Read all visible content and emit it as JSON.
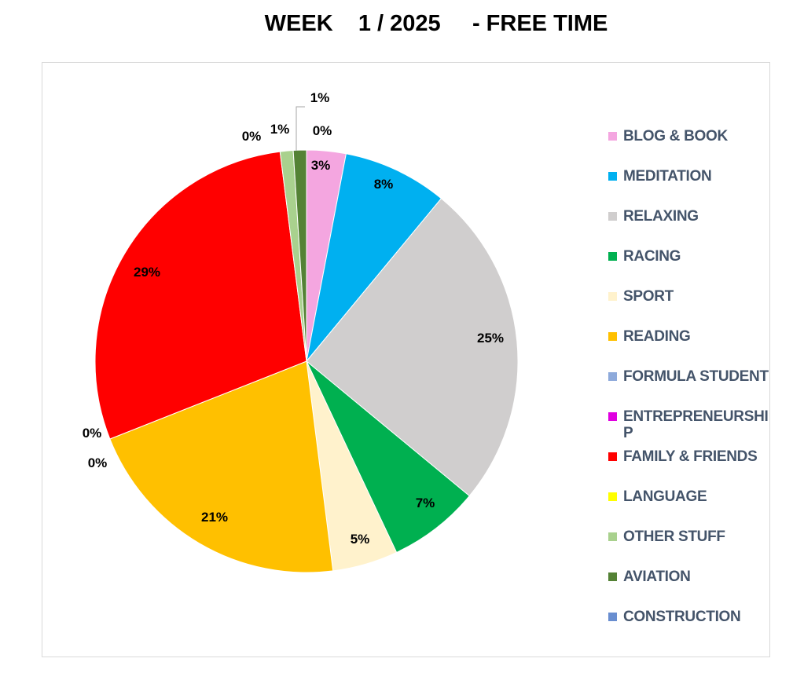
{
  "chart_data": {
    "type": "pie",
    "title": "WEEK    1 / 2025     - FREE TIME",
    "legend_position": "right",
    "slices": [
      {
        "name": "BLOG & BOOK",
        "value": 3,
        "label": "3%",
        "color": "#f4a6e0"
      },
      {
        "name": "MEDITATION",
        "value": 8,
        "label": "8%",
        "color": "#00b0f0"
      },
      {
        "name": "RELAXING",
        "value": 25,
        "label": "25%",
        "color": "#d0cece"
      },
      {
        "name": "RACING",
        "value": 7,
        "label": "7%",
        "color": "#00b050"
      },
      {
        "name": "SPORT",
        "value": 5,
        "label": "5%",
        "color": "#fff2cc"
      },
      {
        "name": "READING",
        "value": 21,
        "label": "21%",
        "color": "#ffc000"
      },
      {
        "name": "FORMULA STUDENT",
        "value": 0,
        "label": "0%",
        "color": "#8eaadb"
      },
      {
        "name": "ENTREPRENEURSHIP",
        "value": 0,
        "label": "0%",
        "color": "#e000e0"
      },
      {
        "name": "FAMILY & FRIENDS",
        "value": 29,
        "label": "29%",
        "color": "#ff0000"
      },
      {
        "name": "LANGUAGE",
        "value": 0,
        "label": "0%",
        "color": "#ffff00"
      },
      {
        "name": "OTHER STUFF",
        "value": 1,
        "label": "1%",
        "color": "#a9d18e"
      },
      {
        "name": "AVIATION",
        "value": 1,
        "label": "1%",
        "color": "#548235"
      },
      {
        "name": "CONSTRUCTION",
        "value": 0,
        "label": "0%",
        "color": "#698ed0"
      }
    ]
  }
}
